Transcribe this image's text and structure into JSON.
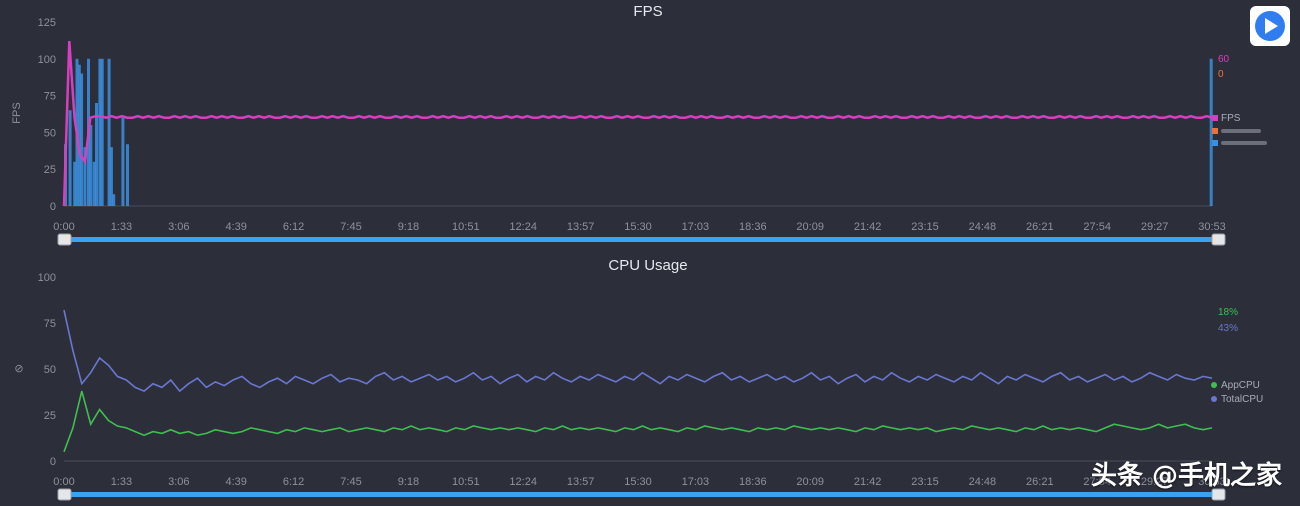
{
  "colors": {
    "background": "#2c2f3a",
    "fps_line": "#d63fc0",
    "fps_bars": "#3b8fe0",
    "frame_jank": "#e8733a",
    "app_cpu": "#3fbf4f",
    "total_cpu": "#6a76d0",
    "slider": "#3aa3f0",
    "play": "#2f7df0"
  },
  "play_button": {
    "icon": "play-icon"
  },
  "watermark": "头条 @手机之家",
  "chart_data": [
    {
      "type": "line",
      "title": "FPS",
      "ylabel": "FPS",
      "ylim": [
        0,
        125
      ],
      "y_ticks": [
        "0",
        "25",
        "50",
        "75",
        "100",
        "125"
      ],
      "x_ticks": [
        "0:00",
        "1:33",
        "3:06",
        "4:39",
        "6:12",
        "7:45",
        "9:18",
        "10:51",
        "12:24",
        "13:57",
        "15:30",
        "17:03",
        "18:36",
        "20:09",
        "21:42",
        "23:15",
        "24:48",
        "26:21",
        "27:54",
        "29:27",
        "30:53"
      ],
      "grid": false,
      "legend_position": "right",
      "current_values": [
        "60",
        "0"
      ],
      "series": [
        {
          "name": "FPS",
          "values": [
            0,
            112,
            60,
            35,
            30,
            60,
            61,
            61,
            60,
            61,
            60,
            61,
            60,
            60,
            61,
            60,
            61,
            60,
            61,
            60,
            60,
            61,
            60,
            61,
            60,
            61,
            60,
            60,
            61,
            60,
            61,
            60,
            61,
            60,
            60,
            61,
            60,
            61,
            60,
            61,
            60,
            60,
            61,
            60,
            61,
            60,
            61,
            60,
            60,
            61,
            60,
            61,
            60,
            61,
            60,
            60,
            61,
            60,
            61,
            60,
            61,
            60,
            60,
            61,
            60,
            61,
            60,
            61,
            60,
            60,
            61,
            60,
            61,
            60,
            61,
            60,
            60,
            61,
            60,
            61,
            60,
            61,
            60,
            60,
            61,
            60,
            61,
            60,
            61,
            60,
            60,
            61,
            60,
            61,
            60,
            61,
            60,
            60,
            61,
            60,
            61,
            60,
            61,
            60,
            60,
            61,
            60,
            61,
            60,
            61,
            60,
            60,
            61,
            60,
            61,
            60,
            61,
            60,
            60,
            61,
            60,
            61,
            60,
            61,
            60,
            60,
            61,
            60,
            61,
            60,
            61,
            60,
            60,
            61,
            60,
            61,
            60,
            61,
            60,
            60,
            61,
            60,
            61,
            60,
            61,
            60,
            60,
            61,
            60,
            61,
            60,
            61,
            60,
            60,
            61,
            60,
            61,
            60,
            61,
            60,
            60,
            61,
            60,
            61,
            60,
            61,
            60,
            60,
            61,
            60,
            61,
            60,
            61,
            60,
            60,
            61,
            60,
            61,
            60,
            61,
            60,
            60,
            61,
            60,
            61,
            60,
            61,
            60,
            60,
            61,
            60,
            61,
            60,
            61,
            60,
            60,
            61,
            60,
            61,
            60,
            61,
            60,
            60,
            61,
            60,
            61,
            60,
            61,
            60,
            60,
            61,
            60,
            61,
            60,
            61,
            60,
            60,
            61,
            60
          ]
        },
        {
          "name": "",
          "values": []
        },
        {
          "name": "",
          "values": []
        }
      ],
      "jank_bars": {
        "x_fraction": [
          0.0,
          0.004,
          0.008,
          0.01,
          0.012,
          0.014,
          0.017,
          0.02,
          0.022,
          0.025,
          0.027,
          0.03,
          0.032,
          0.038,
          0.04,
          0.042,
          0.05,
          0.054,
          0.998
        ],
        "values": [
          42,
          65,
          30,
          100,
          96,
          90,
          40,
          100,
          55,
          30,
          70,
          100,
          100,
          100,
          40,
          8,
          60,
          42,
          100
        ]
      }
    },
    {
      "type": "line",
      "title": "CPU Usage",
      "ylim": [
        0,
        100
      ],
      "y_ticks": [
        "0",
        "25",
        "50",
        "75",
        "100"
      ],
      "x_ticks": [
        "0:00",
        "1:33",
        "3:06",
        "4:39",
        "6:12",
        "7:45",
        "9:18",
        "10:51",
        "12:24",
        "13:57",
        "15:30",
        "17:03",
        "18:36",
        "20:09",
        "21:42",
        "23:15",
        "24:48",
        "26:21",
        "27:54",
        "29:27",
        "30:53"
      ],
      "grid": false,
      "legend_position": "right",
      "current_values": [
        "18%",
        "43%"
      ],
      "series": [
        {
          "name": "AppCPU",
          "values": [
            5,
            18,
            38,
            20,
            28,
            22,
            19,
            18,
            16,
            14,
            16,
            15,
            17,
            15,
            16,
            14,
            15,
            17,
            16,
            15,
            16,
            18,
            17,
            16,
            15,
            17,
            16,
            18,
            17,
            16,
            17,
            18,
            16,
            17,
            18,
            17,
            16,
            18,
            17,
            19,
            17,
            18,
            17,
            16,
            18,
            17,
            19,
            18,
            17,
            18,
            17,
            18,
            17,
            16,
            18,
            17,
            19,
            17,
            18,
            17,
            18,
            17,
            16,
            18,
            17,
            19,
            17,
            18,
            17,
            16,
            18,
            17,
            19,
            18,
            17,
            18,
            17,
            16,
            18,
            17,
            18,
            17,
            19,
            18,
            17,
            18,
            17,
            18,
            17,
            16,
            18,
            17,
            19,
            18,
            17,
            18,
            17,
            18,
            16,
            17,
            18,
            17,
            19,
            18,
            17,
            18,
            17,
            16,
            18,
            17,
            19,
            17,
            18,
            17,
            18,
            17,
            16,
            18,
            20,
            19,
            18,
            17,
            18,
            20,
            18,
            19,
            20,
            18,
            17,
            18
          ]
        },
        {
          "name": "TotalCPU",
          "values": [
            82,
            60,
            42,
            48,
            56,
            52,
            46,
            44,
            40,
            38,
            42,
            40,
            44,
            38,
            42,
            45,
            40,
            43,
            41,
            44,
            46,
            42,
            40,
            43,
            45,
            42,
            46,
            44,
            42,
            45,
            47,
            43,
            45,
            44,
            42,
            46,
            48,
            44,
            46,
            43,
            45,
            47,
            44,
            46,
            43,
            45,
            48,
            44,
            46,
            42,
            45,
            47,
            43,
            46,
            44,
            48,
            45,
            43,
            46,
            44,
            47,
            45,
            43,
            46,
            44,
            48,
            45,
            42,
            46,
            44,
            47,
            45,
            43,
            46,
            48,
            44,
            46,
            43,
            45,
            47,
            44,
            46,
            43,
            45,
            48,
            44,
            46,
            42,
            45,
            47,
            43,
            46,
            44,
            48,
            45,
            43,
            46,
            44,
            47,
            45,
            43,
            46,
            44,
            48,
            45,
            42,
            46,
            44,
            47,
            45,
            43,
            46,
            48,
            44,
            46,
            43,
            45,
            47,
            44,
            46,
            43,
            45,
            48,
            46,
            44,
            47,
            45,
            44,
            46,
            45
          ]
        }
      ]
    }
  ]
}
